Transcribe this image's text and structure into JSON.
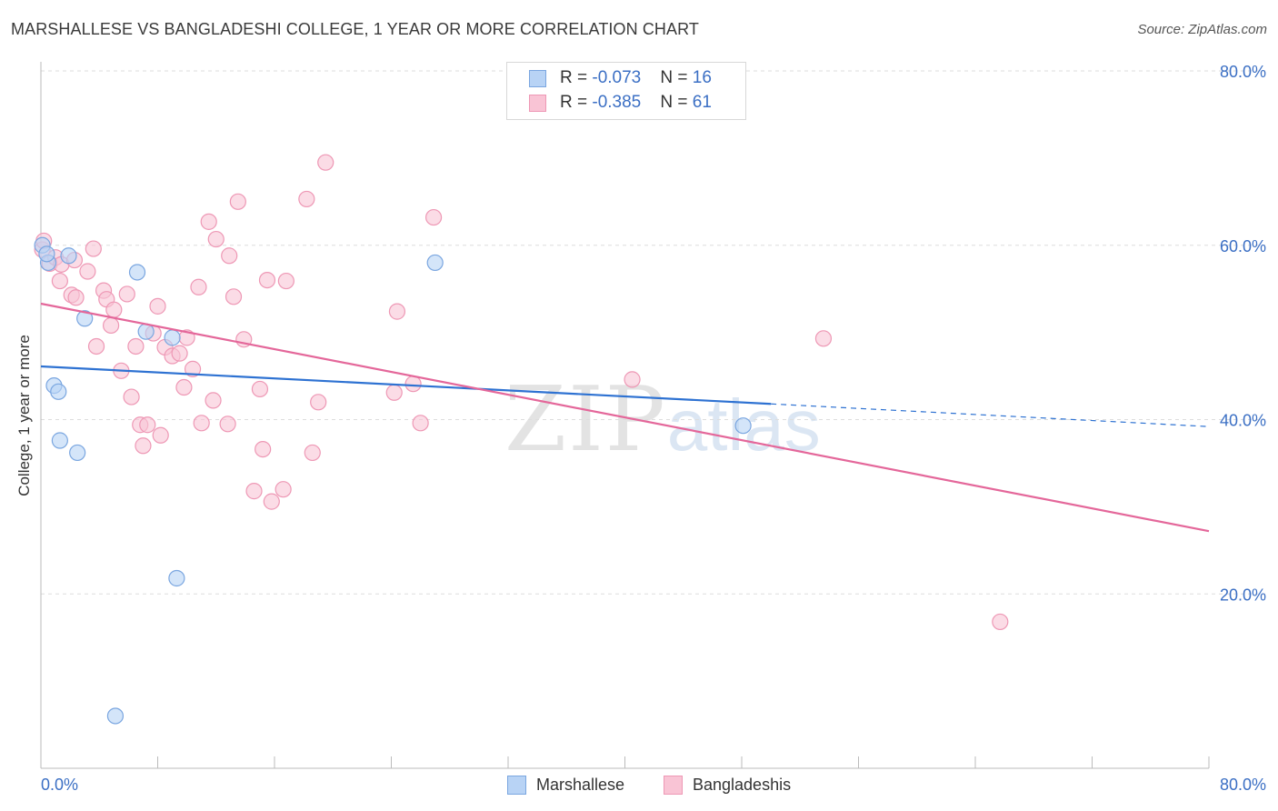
{
  "title": "MARSHALLESE VS BANGLADESHI COLLEGE, 1 YEAR OR MORE CORRELATION CHART",
  "source": "Source: ZipAtlas.com",
  "watermark": {
    "zip": "ZIP",
    "atlas": "atlas"
  },
  "legend": {
    "rows": [
      {
        "r_label": "R = ",
        "r_value": "-0.073",
        "n_label": "N = ",
        "n_value": "16"
      },
      {
        "r_label": "R = ",
        "r_value": "-0.385",
        "n_label": "N = ",
        "n_value": "61"
      }
    ]
  },
  "bottom_legend": {
    "items": [
      "Marshallese",
      "Bangladeshis"
    ]
  },
  "colors": {
    "marshallese_fill": "#b8d3f5",
    "marshallese_stroke": "#7aa6e0",
    "marshallese_line": "#2e72d2",
    "bangladeshi_fill": "#f9c4d5",
    "bangladeshi_stroke": "#ee98b5",
    "bangladeshi_line": "#e4679a",
    "tick_label": "#3b6fc4",
    "grid": "#dddddd"
  },
  "chart_data": {
    "type": "scatter",
    "title": "MARSHALLESE VS BANGLADESHI COLLEGE, 1 YEAR OR MORE CORRELATION CHART",
    "xlabel": "",
    "ylabel": "College, 1 year or more",
    "xlim": [
      0,
      80
    ],
    "ylim": [
      0,
      80
    ],
    "x_tick_labels": [
      "0.0%",
      "80.0%"
    ],
    "y_tick_labels": [
      "20.0%",
      "40.0%",
      "60.0%",
      "80.0%"
    ],
    "y_ticks": [
      20,
      40,
      60,
      80
    ],
    "grid": "horizontal dashed",
    "legend_position": "top-center",
    "series": [
      {
        "name": "Marshallese",
        "points": [
          [
            0.1,
            60.0
          ],
          [
            0.5,
            58.0
          ],
          [
            1.9,
            58.8
          ],
          [
            6.6,
            56.9
          ],
          [
            3.0,
            51.6
          ],
          [
            7.2,
            50.1
          ],
          [
            9.0,
            49.4
          ],
          [
            0.9,
            43.9
          ],
          [
            1.2,
            43.2
          ],
          [
            1.3,
            37.6
          ],
          [
            2.5,
            36.2
          ],
          [
            27.0,
            58.0
          ],
          [
            48.1,
            39.3
          ],
          [
            9.3,
            21.8
          ],
          [
            5.1,
            6.0
          ],
          [
            0.4,
            59.0
          ]
        ],
        "trend": {
          "x": [
            0,
            50
          ],
          "y": [
            46.1,
            41.8
          ],
          "extended_to": [
            80,
            39.2
          ]
        }
      },
      {
        "name": "Bangladeshis",
        "points": [
          [
            0.1,
            59.5
          ],
          [
            0.6,
            57.9
          ],
          [
            1.0,
            58.6
          ],
          [
            1.4,
            57.8
          ],
          [
            1.3,
            55.9
          ],
          [
            2.1,
            54.3
          ],
          [
            2.3,
            58.3
          ],
          [
            2.4,
            54.0
          ],
          [
            3.2,
            57.0
          ],
          [
            3.6,
            59.6
          ],
          [
            3.8,
            48.4
          ],
          [
            4.3,
            54.8
          ],
          [
            4.5,
            53.8
          ],
          [
            4.8,
            50.8
          ],
          [
            5.0,
            52.6
          ],
          [
            5.5,
            45.6
          ],
          [
            5.9,
            54.4
          ],
          [
            6.2,
            42.6
          ],
          [
            6.5,
            48.4
          ],
          [
            6.8,
            39.4
          ],
          [
            7.0,
            37.0
          ],
          [
            7.3,
            39.4
          ],
          [
            7.7,
            49.9
          ],
          [
            8.0,
            53.0
          ],
          [
            8.2,
            38.2
          ],
          [
            8.5,
            48.3
          ],
          [
            9.0,
            47.3
          ],
          [
            9.5,
            47.6
          ],
          [
            9.8,
            43.7
          ],
          [
            10.0,
            49.4
          ],
          [
            10.4,
            45.8
          ],
          [
            10.8,
            55.2
          ],
          [
            11.0,
            39.6
          ],
          [
            11.5,
            62.7
          ],
          [
            11.8,
            42.2
          ],
          [
            12.0,
            60.7
          ],
          [
            12.8,
            39.5
          ],
          [
            12.9,
            58.8
          ],
          [
            13.2,
            54.1
          ],
          [
            13.5,
            65.0
          ],
          [
            13.9,
            49.2
          ],
          [
            14.6,
            31.8
          ],
          [
            15.0,
            43.5
          ],
          [
            15.2,
            36.6
          ],
          [
            15.5,
            56.0
          ],
          [
            15.8,
            30.6
          ],
          [
            16.6,
            32.0
          ],
          [
            16.8,
            55.9
          ],
          [
            18.2,
            65.3
          ],
          [
            18.6,
            36.2
          ],
          [
            19.0,
            42.0
          ],
          [
            19.5,
            69.5
          ],
          [
            24.2,
            43.1
          ],
          [
            24.4,
            52.4
          ],
          [
            25.5,
            44.1
          ],
          [
            26.0,
            39.6
          ],
          [
            26.9,
            63.2
          ],
          [
            40.5,
            44.6
          ],
          [
            53.6,
            49.3
          ],
          [
            65.7,
            16.8
          ],
          [
            0.2,
            60.5
          ]
        ],
        "trend": {
          "x": [
            0,
            80
          ],
          "y": [
            53.3,
            27.2
          ]
        }
      }
    ]
  }
}
